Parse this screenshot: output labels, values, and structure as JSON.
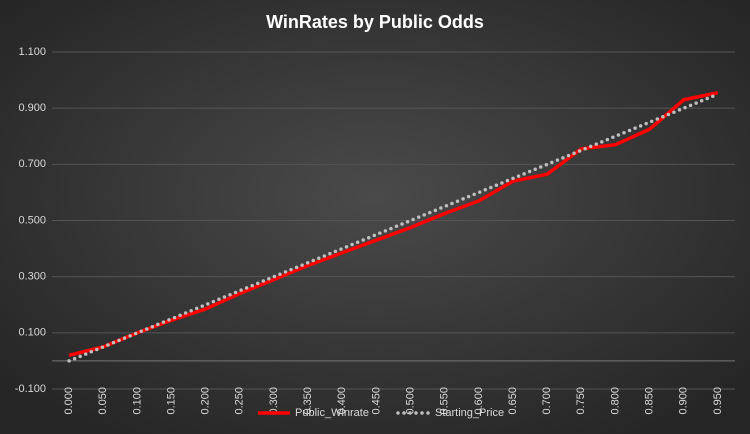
{
  "chart_data": {
    "type": "line",
    "title": "WinRates  by  Public  Odds",
    "categories": [
      "0.000",
      "0.050",
      "0.100",
      "0.150",
      "0.200",
      "0.250",
      "0.300",
      "0.350",
      "0.400",
      "0.450",
      "0.500",
      "0.550",
      "0.600",
      "0.650",
      "0.700",
      "0.750",
      "0.800",
      "0.850",
      "0.900",
      "0.950"
    ],
    "series": [
      {
        "name": "Public_Winrate",
        "color": "#ff0000",
        "style": "solid",
        "values": [
          0.02,
          0.05,
          0.1,
          0.145,
          0.185,
          0.24,
          0.29,
          0.34,
          0.385,
          0.43,
          0.475,
          0.525,
          0.57,
          0.64,
          0.665,
          0.755,
          0.77,
          0.825,
          0.93,
          0.955
        ]
      },
      {
        "name": "Starting_Price",
        "color": "#bfbfbf",
        "style": "dotted",
        "values": [
          0,
          0.05,
          0.1,
          0.15,
          0.2,
          0.25,
          0.3,
          0.35,
          0.4,
          0.45,
          0.5,
          0.55,
          0.6,
          0.65,
          0.7,
          0.75,
          0.8,
          0.85,
          0.9,
          0.95
        ]
      }
    ],
    "ylim": [
      -0.1,
      1.1
    ],
    "yticks": [
      {
        "value": -0.1,
        "label": "-0.100"
      },
      {
        "value": 0.1,
        "label": "0.100"
      },
      {
        "value": 0.3,
        "label": "0.300"
      },
      {
        "value": 0.5,
        "label": "0.500"
      },
      {
        "value": 0.7,
        "label": "0.700"
      },
      {
        "value": 0.9,
        "label": "0.900"
      },
      {
        "value": 1.1,
        "label": "1.100"
      }
    ],
    "grid": true,
    "legend": "bottom"
  }
}
